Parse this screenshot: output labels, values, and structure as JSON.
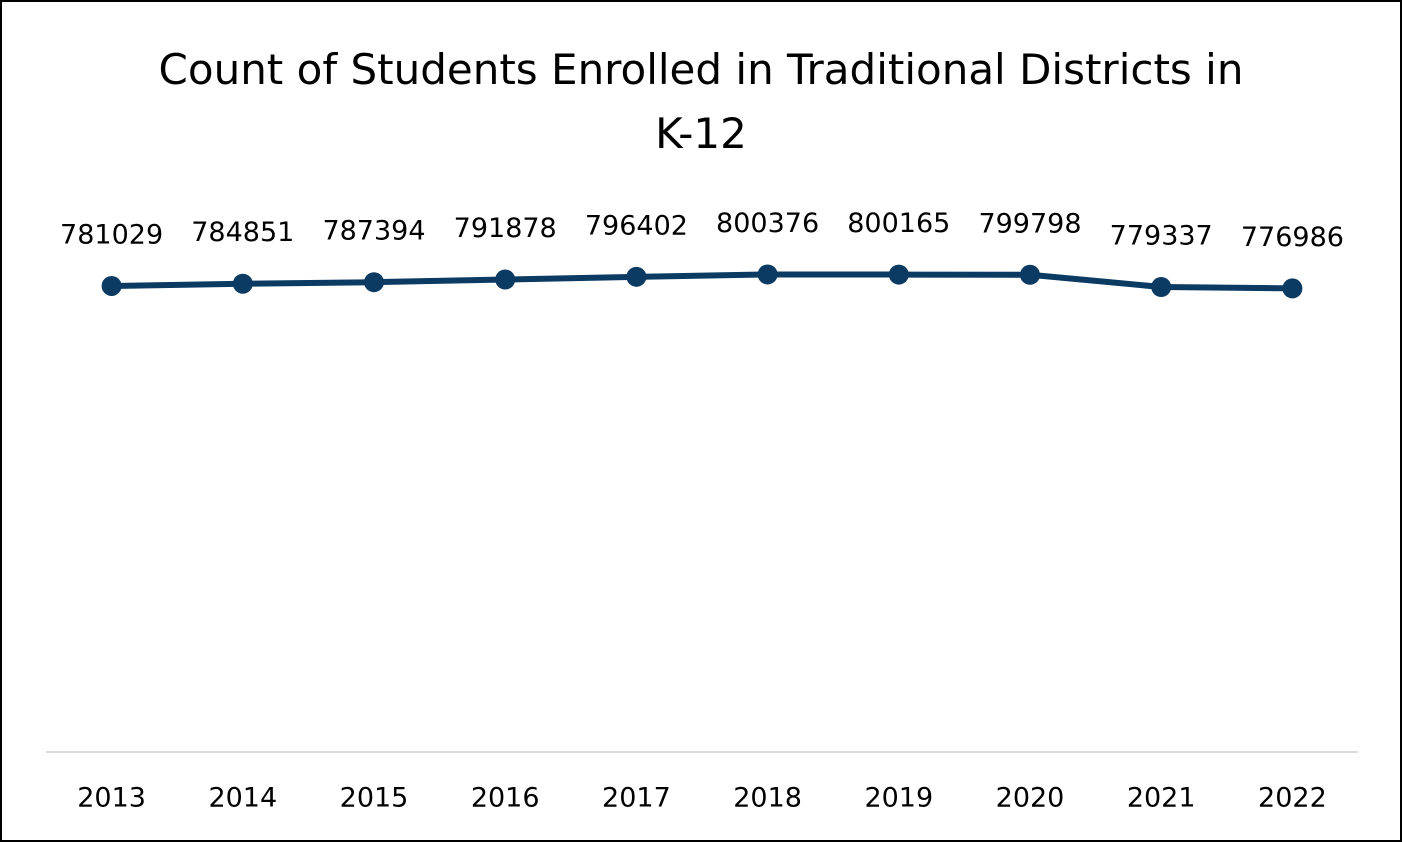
{
  "chart_data": {
    "type": "line",
    "title": "Count of Students Enrolled in Traditional Districts in K-12",
    "categories": [
      "2013",
      "2014",
      "2015",
      "2016",
      "2017",
      "2018",
      "2019",
      "2020",
      "2021",
      "2022"
    ],
    "values": [
      781029,
      784851,
      787394,
      791878,
      796402,
      800376,
      800165,
      799798,
      779337,
      776986
    ],
    "color": "#0b3a62",
    "ylim": [
      0,
      900000
    ]
  }
}
